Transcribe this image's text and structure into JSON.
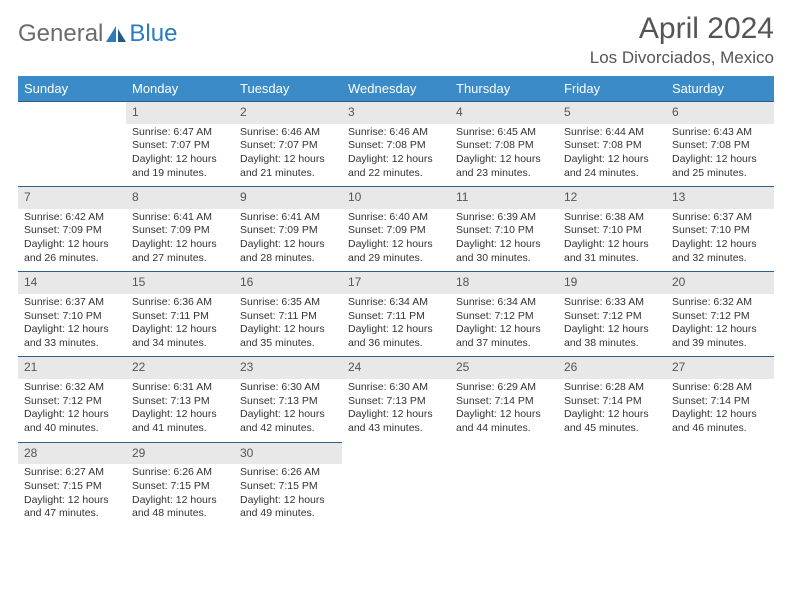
{
  "logo": {
    "part1": "General",
    "part2": "Blue"
  },
  "title": "April 2024",
  "location": "Los Divorciados, Mexico",
  "colors": {
    "header_bg": "#3b8bc9",
    "header_text": "#ffffff",
    "daynum_bg": "#e8e8e8",
    "border": "#2b5f8a",
    "logo_gray": "#6b6b6b",
    "logo_blue": "#2b7bbf"
  },
  "weekdays": [
    "Sunday",
    "Monday",
    "Tuesday",
    "Wednesday",
    "Thursday",
    "Friday",
    "Saturday"
  ],
  "first_day_index": 1,
  "days": [
    {
      "n": 1,
      "sr": "6:47 AM",
      "ss": "7:07 PM",
      "dl": "12 hours and 19 minutes."
    },
    {
      "n": 2,
      "sr": "6:46 AM",
      "ss": "7:07 PM",
      "dl": "12 hours and 21 minutes."
    },
    {
      "n": 3,
      "sr": "6:46 AM",
      "ss": "7:08 PM",
      "dl": "12 hours and 22 minutes."
    },
    {
      "n": 4,
      "sr": "6:45 AM",
      "ss": "7:08 PM",
      "dl": "12 hours and 23 minutes."
    },
    {
      "n": 5,
      "sr": "6:44 AM",
      "ss": "7:08 PM",
      "dl": "12 hours and 24 minutes."
    },
    {
      "n": 6,
      "sr": "6:43 AM",
      "ss": "7:08 PM",
      "dl": "12 hours and 25 minutes."
    },
    {
      "n": 7,
      "sr": "6:42 AM",
      "ss": "7:09 PM",
      "dl": "12 hours and 26 minutes."
    },
    {
      "n": 8,
      "sr": "6:41 AM",
      "ss": "7:09 PM",
      "dl": "12 hours and 27 minutes."
    },
    {
      "n": 9,
      "sr": "6:41 AM",
      "ss": "7:09 PM",
      "dl": "12 hours and 28 minutes."
    },
    {
      "n": 10,
      "sr": "6:40 AM",
      "ss": "7:09 PM",
      "dl": "12 hours and 29 minutes."
    },
    {
      "n": 11,
      "sr": "6:39 AM",
      "ss": "7:10 PM",
      "dl": "12 hours and 30 minutes."
    },
    {
      "n": 12,
      "sr": "6:38 AM",
      "ss": "7:10 PM",
      "dl": "12 hours and 31 minutes."
    },
    {
      "n": 13,
      "sr": "6:37 AM",
      "ss": "7:10 PM",
      "dl": "12 hours and 32 minutes."
    },
    {
      "n": 14,
      "sr": "6:37 AM",
      "ss": "7:10 PM",
      "dl": "12 hours and 33 minutes."
    },
    {
      "n": 15,
      "sr": "6:36 AM",
      "ss": "7:11 PM",
      "dl": "12 hours and 34 minutes."
    },
    {
      "n": 16,
      "sr": "6:35 AM",
      "ss": "7:11 PM",
      "dl": "12 hours and 35 minutes."
    },
    {
      "n": 17,
      "sr": "6:34 AM",
      "ss": "7:11 PM",
      "dl": "12 hours and 36 minutes."
    },
    {
      "n": 18,
      "sr": "6:34 AM",
      "ss": "7:12 PM",
      "dl": "12 hours and 37 minutes."
    },
    {
      "n": 19,
      "sr": "6:33 AM",
      "ss": "7:12 PM",
      "dl": "12 hours and 38 minutes."
    },
    {
      "n": 20,
      "sr": "6:32 AM",
      "ss": "7:12 PM",
      "dl": "12 hours and 39 minutes."
    },
    {
      "n": 21,
      "sr": "6:32 AM",
      "ss": "7:12 PM",
      "dl": "12 hours and 40 minutes."
    },
    {
      "n": 22,
      "sr": "6:31 AM",
      "ss": "7:13 PM",
      "dl": "12 hours and 41 minutes."
    },
    {
      "n": 23,
      "sr": "6:30 AM",
      "ss": "7:13 PM",
      "dl": "12 hours and 42 minutes."
    },
    {
      "n": 24,
      "sr": "6:30 AM",
      "ss": "7:13 PM",
      "dl": "12 hours and 43 minutes."
    },
    {
      "n": 25,
      "sr": "6:29 AM",
      "ss": "7:14 PM",
      "dl": "12 hours and 44 minutes."
    },
    {
      "n": 26,
      "sr": "6:28 AM",
      "ss": "7:14 PM",
      "dl": "12 hours and 45 minutes."
    },
    {
      "n": 27,
      "sr": "6:28 AM",
      "ss": "7:14 PM",
      "dl": "12 hours and 46 minutes."
    },
    {
      "n": 28,
      "sr": "6:27 AM",
      "ss": "7:15 PM",
      "dl": "12 hours and 47 minutes."
    },
    {
      "n": 29,
      "sr": "6:26 AM",
      "ss": "7:15 PM",
      "dl": "12 hours and 48 minutes."
    },
    {
      "n": 30,
      "sr": "6:26 AM",
      "ss": "7:15 PM",
      "dl": "12 hours and 49 minutes."
    }
  ],
  "labels": {
    "sunrise": "Sunrise:",
    "sunset": "Sunset:",
    "daylight": "Daylight:"
  }
}
